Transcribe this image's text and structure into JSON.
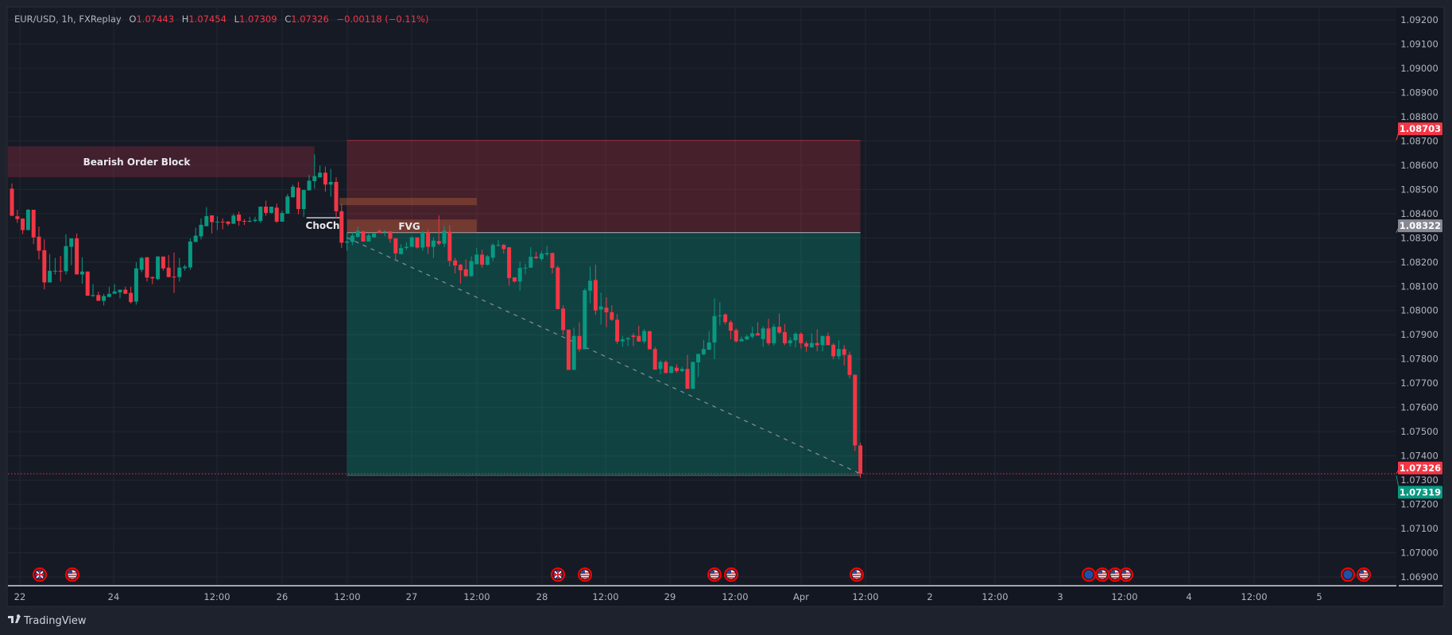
{
  "header": {
    "symbol": "EUR/USD, 1h, FXReplay",
    "o_label": "O",
    "o": "1.07443",
    "h_label": "H",
    "h": "1.07454",
    "l_label": "L",
    "l": "1.07309",
    "c_label": "C",
    "c": "1.07326",
    "change": "−0.00118 (−0.11%)"
  },
  "annotations": {
    "order_block": "Bearish Order Block",
    "choch": "ChoCh",
    "fvg": "FVG"
  },
  "price_badges": [
    {
      "label": "1.08703",
      "value": 1.08703,
      "color": "#f23645"
    },
    {
      "label": "1.08322",
      "value": 1.08322,
      "color": "#868993"
    },
    {
      "label": "1.07326",
      "value": 1.07326,
      "color": "#f23645"
    },
    {
      "label": "1.07319",
      "value": 1.07319,
      "color": "#089981"
    }
  ],
  "time_axis": [
    "22",
    "24",
    "12:00",
    "26",
    "12:00",
    "27",
    "12:00",
    "28",
    "12:00",
    "29",
    "12:00",
    "Apr",
    "12:00",
    "2",
    "12:00",
    "3",
    "12:00",
    "4",
    "12:00",
    "5"
  ],
  "events": [
    "uk-flag",
    "us-flag",
    "uk-flag",
    "us-flag",
    "us-flag",
    "us-flag",
    "us-flag",
    "eu-flag",
    "us-flag",
    "us-flag",
    "us-flag",
    "eu-flag",
    "us-flag"
  ],
  "footer": {
    "logo": "TradingView"
  },
  "colors": {
    "up": "#089981",
    "down": "#f23645",
    "background": "#161a25",
    "accent_text": "#f23645"
  },
  "chart_data": {
    "type": "candlestick",
    "title": "EUR/USD, 1h, FXReplay",
    "y_ticks": [
      "1.06900",
      "1.07000",
      "1.07100",
      "1.07200",
      "1.07300",
      "1.07400",
      "1.07500",
      "1.07600",
      "1.07700",
      "1.07800",
      "1.07900",
      "1.08000",
      "1.08100",
      "1.08200",
      "1.08300",
      "1.08400",
      "1.08500",
      "1.08600",
      "1.08700",
      "1.08800",
      "1.08900",
      "1.09000",
      "1.09100",
      "1.09200"
    ],
    "ylim": [
      1.069,
      1.092
    ],
    "grid": true,
    "current_price": 1.07326,
    "zones": {
      "bearish_order_block": {
        "from_bar": -1,
        "to_bar": 56,
        "top": 1.08678,
        "bottom": 1.0855
      },
      "stop_zone": {
        "from_bar": 62,
        "to_bar": 157,
        "top": 1.08703,
        "bottom": 1.08322
      },
      "target_zone": {
        "from_bar": 62,
        "to_bar": 157,
        "top": 1.08322,
        "bottom": 1.07319
      },
      "fvg_upper": {
        "from_bar": 60.6,
        "to_bar": 86,
        "top": 1.08465,
        "bottom": 1.08435
      },
      "fvg_lower": {
        "from_bar": 62,
        "to_bar": 86,
        "top": 1.08376,
        "bottom": 1.08322
      },
      "choch_line": {
        "from_bar": 54.5,
        "to_bar": 61,
        "price": 1.08383
      },
      "trend_line": {
        "from_bar": 62,
        "from_price": 1.08301,
        "to_bar": 157,
        "to_price": 1.07326
      }
    },
    "candles": [
      [
        1.08503,
        1.08525,
        1.08391,
        1.08391
      ],
      [
        1.08389,
        1.08416,
        1.08362,
        1.08378
      ],
      [
        1.0838,
        1.0838,
        1.08315,
        1.08332
      ],
      [
        1.08332,
        1.08419,
        1.08332,
        1.08416
      ],
      [
        1.08416,
        1.08416,
        1.08274,
        1.08302
      ],
      [
        1.08305,
        1.08347,
        1.08211,
        1.08247
      ],
      [
        1.08249,
        1.08294,
        1.08087,
        1.08116
      ],
      [
        1.08116,
        1.08233,
        1.08116,
        1.08164
      ],
      [
        1.08162,
        1.08217,
        1.08149,
        1.08164
      ],
      [
        1.08164,
        1.08225,
        1.0812,
        1.08162
      ],
      [
        1.08162,
        1.08315,
        1.08149,
        1.08266
      ],
      [
        1.08263,
        1.08298,
        1.08187,
        1.08298
      ],
      [
        1.08298,
        1.08318,
        1.08149,
        1.08149
      ],
      [
        1.08149,
        1.0822,
        1.08111,
        1.08161
      ],
      [
        1.08161,
        1.08161,
        1.08061,
        1.08061
      ],
      [
        1.0806,
        1.08109,
        1.08056,
        1.08064
      ],
      [
        1.08064,
        1.08078,
        1.0804,
        1.0804
      ],
      [
        1.0804,
        1.08069,
        1.08021,
        1.0806
      ],
      [
        1.08056,
        1.08098,
        1.08056,
        1.08069
      ],
      [
        1.08069,
        1.08109,
        1.08069,
        1.08079
      ],
      [
        1.08075,
        1.08086,
        1.08051,
        1.08086
      ],
      [
        1.08086,
        1.08098,
        1.08069,
        1.08069
      ],
      [
        1.08073,
        1.08098,
        1.08029,
        1.08035
      ],
      [
        1.08037,
        1.082,
        1.08024,
        1.08174
      ],
      [
        1.08168,
        1.08222,
        1.08158,
        1.08217
      ],
      [
        1.0822,
        1.0822,
        1.0812,
        1.08136
      ],
      [
        1.08138,
        1.08141,
        1.08109,
        1.08133
      ],
      [
        1.0813,
        1.08225,
        1.08125,
        1.08223
      ],
      [
        1.08223,
        1.08223,
        1.08165,
        1.08174
      ],
      [
        1.08177,
        1.08229,
        1.08138,
        1.08138
      ],
      [
        1.0814,
        1.08239,
        1.08073,
        1.08138
      ],
      [
        1.08138,
        1.08217,
        1.0812,
        1.08177
      ],
      [
        1.08175,
        1.08189,
        1.08165,
        1.08181
      ],
      [
        1.08178,
        1.08298,
        1.08168,
        1.08285
      ],
      [
        1.08283,
        1.08342,
        1.08283,
        1.08309
      ],
      [
        1.08306,
        1.0838,
        1.08293,
        1.08354
      ],
      [
        1.08348,
        1.08427,
        1.08348,
        1.0839
      ],
      [
        1.08393,
        1.08393,
        1.08318,
        1.08365
      ],
      [
        1.08366,
        1.08389,
        1.08332,
        1.08367
      ],
      [
        1.08367,
        1.0838,
        1.08335,
        1.08364
      ],
      [
        1.08367,
        1.0837,
        1.0835,
        1.08358
      ],
      [
        1.08358,
        1.084,
        1.08358,
        1.08392
      ],
      [
        1.08396,
        1.08408,
        1.0835,
        1.0837
      ],
      [
        1.0837,
        1.08378,
        1.08353,
        1.08367
      ],
      [
        1.08367,
        1.08387,
        1.08364,
        1.0837
      ],
      [
        1.0837,
        1.08387,
        1.08364,
        1.08375
      ],
      [
        1.0837,
        1.08429,
        1.08362,
        1.08429
      ],
      [
        1.08429,
        1.08454,
        1.08391,
        1.08403
      ],
      [
        1.08403,
        1.08429,
        1.084,
        1.08429
      ],
      [
        1.08425,
        1.08441,
        1.08362,
        1.08367
      ],
      [
        1.08367,
        1.08413,
        1.08367,
        1.08403
      ],
      [
        1.084,
        1.08481,
        1.084,
        1.08471
      ],
      [
        1.08468,
        1.0852,
        1.08465,
        1.08511
      ],
      [
        1.08507,
        1.08531,
        1.08397,
        1.08419
      ],
      [
        1.08419,
        1.08498,
        1.08387,
        1.08498
      ],
      [
        1.08496,
        1.0856,
        1.08496,
        1.08536
      ],
      [
        1.08534,
        1.08645,
        1.08503,
        1.08555
      ],
      [
        1.0855,
        1.08598,
        1.0855,
        1.08569
      ],
      [
        1.08569,
        1.08594,
        1.0849,
        1.0852
      ],
      [
        1.0852,
        1.08585,
        1.0847,
        1.08531
      ],
      [
        1.08531,
        1.0855,
        1.0838,
        1.0841
      ],
      [
        1.0841,
        1.08441,
        1.08258,
        1.0828
      ],
      [
        1.0828,
        1.08321,
        1.08247,
        1.08285
      ],
      [
        1.08283,
        1.08323,
        1.08271,
        1.08309
      ],
      [
        1.08304,
        1.08347,
        1.08302,
        1.08329
      ],
      [
        1.08327,
        1.08327,
        1.08285,
        1.08285
      ],
      [
        1.08285,
        1.08318,
        1.08285,
        1.0831
      ],
      [
        1.08302,
        1.08318,
        1.08302,
        1.08318
      ],
      [
        1.08329,
        1.08334,
        1.08321,
        1.08321
      ],
      [
        1.08323,
        1.08332,
        1.08307,
        1.08327
      ],
      [
        1.08327,
        1.08327,
        1.0828,
        1.08296
      ],
      [
        1.08298,
        1.08298,
        1.08207,
        1.08236
      ],
      [
        1.08233,
        1.08274,
        1.08233,
        1.08258
      ],
      [
        1.08258,
        1.08282,
        1.0825,
        1.08263
      ],
      [
        1.08263,
        1.08307,
        1.08263,
        1.08302
      ],
      [
        1.08302,
        1.08302,
        1.08256,
        1.0826
      ],
      [
        1.0826,
        1.08329,
        1.08247,
        1.08323
      ],
      [
        1.08323,
        1.08336,
        1.08234,
        1.08263
      ],
      [
        1.08263,
        1.08302,
        1.08217,
        1.08289
      ],
      [
        1.08287,
        1.08393,
        1.08269,
        1.08276
      ],
      [
        1.08276,
        1.08349,
        1.08262,
        1.08329
      ],
      [
        1.08325,
        1.08352,
        1.08183,
        1.08205
      ],
      [
        1.08207,
        1.08218,
        1.08153,
        1.08186
      ],
      [
        1.08189,
        1.08193,
        1.08111,
        1.08166
      ],
      [
        1.0817,
        1.08211,
        1.08139,
        1.08142
      ],
      [
        1.08142,
        1.08224,
        1.08139,
        1.08204
      ],
      [
        1.08191,
        1.08259,
        1.08191,
        1.08231
      ],
      [
        1.08231,
        1.08251,
        1.08177,
        1.08189
      ],
      [
        1.08189,
        1.08229,
        1.08186,
        1.08224
      ],
      [
        1.08218,
        1.08278,
        1.08204,
        1.08271
      ],
      [
        1.08268,
        1.08291,
        1.08264,
        1.08271
      ],
      [
        1.08271,
        1.08275,
        1.08235,
        1.08254
      ],
      [
        1.08261,
        1.08261,
        1.08104,
        1.08134
      ],
      [
        1.08137,
        1.08137,
        1.08115,
        1.0812
      ],
      [
        1.0812,
        1.08202,
        1.08082,
        1.08176
      ],
      [
        1.08175,
        1.08193,
        1.0815,
        1.08177
      ],
      [
        1.08177,
        1.08261,
        1.08177,
        1.08222
      ],
      [
        1.08222,
        1.08243,
        1.08213,
        1.08216
      ],
      [
        1.08213,
        1.08246,
        1.08205,
        1.08235
      ],
      [
        1.08232,
        1.08267,
        1.08224,
        1.08237
      ],
      [
        1.08237,
        1.0824,
        1.08153,
        1.08176
      ],
      [
        1.08178,
        1.08186,
        1.08006,
        1.08006
      ],
      [
        1.08008,
        1.08022,
        1.07899,
        1.07919
      ],
      [
        1.07921,
        1.07921,
        1.07755,
        1.07755
      ],
      [
        1.07755,
        1.07929,
        1.07755,
        1.07895
      ],
      [
        1.07895,
        1.07951,
        1.07831,
        1.0784
      ],
      [
        1.0784,
        1.08091,
        1.0784,
        1.08084
      ],
      [
        1.08082,
        1.08182,
        1.0803,
        1.08123
      ],
      [
        1.08126,
        1.08189,
        1.07982,
        1.08
      ],
      [
        1.08004,
        1.08074,
        1.07942,
        1.08017
      ],
      [
        1.08012,
        1.08055,
        1.07932,
        1.07993
      ],
      [
        1.07993,
        1.08022,
        1.07957,
        1.07962
      ],
      [
        1.07962,
        1.07986,
        1.07862,
        1.07872
      ],
      [
        1.07873,
        1.07895,
        1.0785,
        1.07881
      ],
      [
        1.07881,
        1.07891,
        1.07853,
        1.07886
      ],
      [
        1.07897,
        1.07908,
        1.07853,
        1.07891
      ],
      [
        1.07895,
        1.07937,
        1.07872,
        1.07872
      ],
      [
        1.07872,
        1.07924,
        1.07864,
        1.07915
      ],
      [
        1.07915,
        1.07915,
        1.0784,
        1.0784
      ],
      [
        1.07841,
        1.0785,
        1.07756,
        1.07756
      ],
      [
        1.07759,
        1.07795,
        1.07737,
        1.07788
      ],
      [
        1.07788,
        1.07795,
        1.07742,
        1.07742
      ],
      [
        1.07742,
        1.07772,
        1.07742,
        1.07769
      ],
      [
        1.07764,
        1.07778,
        1.07742,
        1.0775
      ],
      [
        1.0775,
        1.07768,
        1.07746,
        1.07759
      ],
      [
        1.07759,
        1.07817,
        1.07677,
        1.07677
      ],
      [
        1.07677,
        1.07788,
        1.07677,
        1.07788
      ],
      [
        1.07786,
        1.07821,
        1.07726,
        1.07821
      ],
      [
        1.07819,
        1.07879,
        1.07816,
        1.07841
      ],
      [
        1.07838,
        1.07915,
        1.07838,
        1.07868
      ],
      [
        1.07868,
        1.0805,
        1.07799,
        1.07977
      ],
      [
        1.07977,
        1.08034,
        1.07939,
        1.0798
      ],
      [
        1.07984,
        1.07988,
        1.07942,
        1.07952
      ],
      [
        1.07952,
        1.0796,
        1.07881,
        1.07917
      ],
      [
        1.07919,
        1.07926,
        1.07868,
        1.07873
      ],
      [
        1.07873,
        1.07893,
        1.07873,
        1.07882
      ],
      [
        1.07881,
        1.07901,
        1.07878,
        1.07893
      ],
      [
        1.07892,
        1.07933,
        1.07884,
        1.07906
      ],
      [
        1.07906,
        1.07952,
        1.07897,
        1.07897
      ],
      [
        1.07882,
        1.07935,
        1.07851,
        1.07926
      ],
      [
        1.07926,
        1.07966,
        1.07857,
        1.07865
      ],
      [
        1.07865,
        1.07944,
        1.07855,
        1.07933
      ],
      [
        1.07933,
        1.07988,
        1.07904,
        1.07909
      ],
      [
        1.07911,
        1.07944,
        1.07857,
        1.07865
      ],
      [
        1.07865,
        1.0789,
        1.07851,
        1.07877
      ],
      [
        1.07877,
        1.07911,
        1.07848,
        1.07904
      ],
      [
        1.07904,
        1.07911,
        1.07843,
        1.07865
      ],
      [
        1.07865,
        1.07873,
        1.0783,
        1.07851
      ],
      [
        1.07848,
        1.07906,
        1.07846,
        1.07866
      ],
      [
        1.07866,
        1.07922,
        1.07832,
        1.07857
      ],
      [
        1.07857,
        1.07895,
        1.07832,
        1.07895
      ],
      [
        1.07895,
        1.07909,
        1.07857,
        1.07857
      ],
      [
        1.07859,
        1.07866,
        1.07799,
        1.07811
      ],
      [
        1.07811,
        1.07877,
        1.07799,
        1.07841
      ],
      [
        1.07841,
        1.07857,
        1.07773,
        1.07817
      ],
      [
        1.07817,
        1.0783,
        1.07721,
        1.07734
      ],
      [
        1.07735,
        1.07735,
        1.0742,
        1.07443
      ],
      [
        1.07443,
        1.07454,
        1.07309,
        1.07326
      ]
    ]
  }
}
